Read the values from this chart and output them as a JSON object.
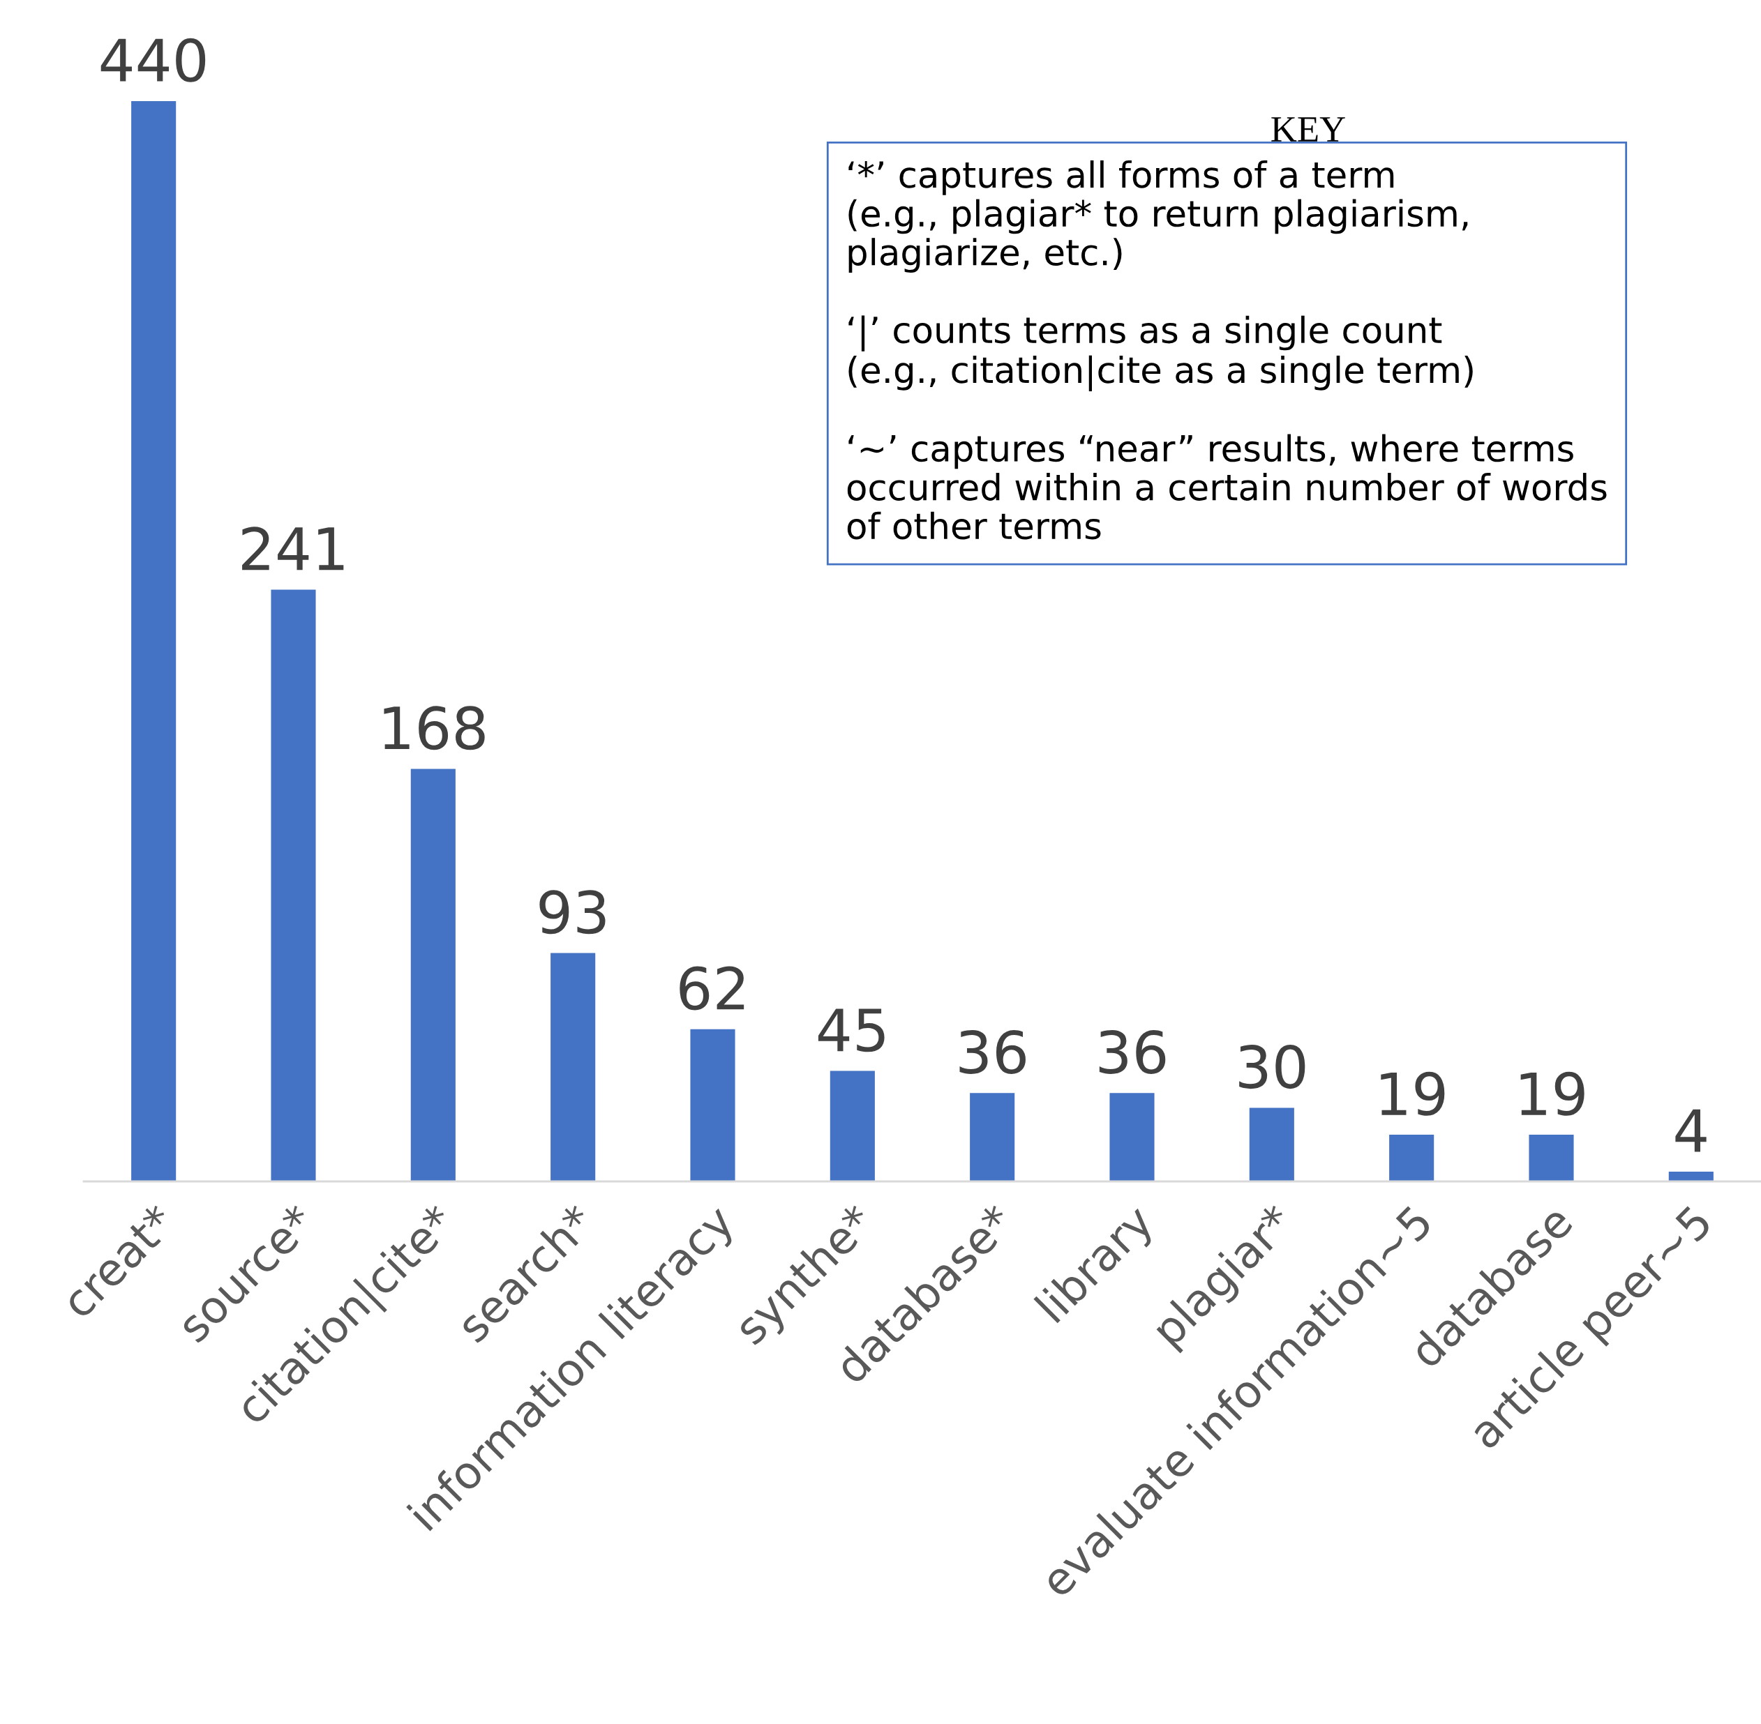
{
  "chart_data": {
    "type": "bar",
    "categories": [
      "creat*",
      "source*",
      "citation|cite*",
      "search*",
      "information literacy",
      "synthe*",
      "database*",
      "library",
      "plagiar*",
      "evaluate information~5",
      "database",
      "article peer~5"
    ],
    "values": [
      440,
      241,
      168,
      93,
      62,
      45,
      36,
      36,
      30,
      19,
      19,
      4
    ],
    "color": "#4472c4",
    "data_labels": true,
    "grid": false,
    "legend": false,
    "tick_labels": "x",
    "annotations": [
      "KEY",
      "‘*’ captures all forms of a term\n(e.g., plagiar* to return plagiarism,\nplagiarize, etc.)\n\n‘|’ counts terms as a single count\n(e.g., citation|cite as a single term)\n\n‘~’ captures “near” results, where terms\noccurred within a certain number of words\nof other terms"
    ]
  }
}
